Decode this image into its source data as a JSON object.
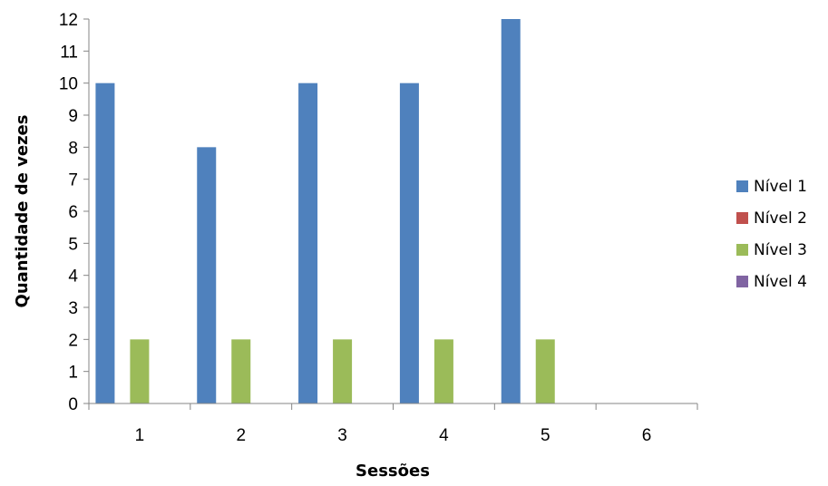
{
  "chart_data": {
    "type": "bar",
    "title": "",
    "xlabel": "Sessões",
    "ylabel": "Quantidade de vezes",
    "categories": [
      "1",
      "2",
      "3",
      "4",
      "5",
      "6"
    ],
    "ylim": [
      0,
      12
    ],
    "yticks": [
      0,
      1,
      2,
      3,
      4,
      5,
      6,
      7,
      8,
      9,
      10,
      11,
      12
    ],
    "grid": false,
    "legend_position": "right",
    "series": [
      {
        "name": "Nível 1",
        "color": "#4F81BD",
        "values": [
          10,
          8,
          10,
          10,
          12,
          0
        ]
      },
      {
        "name": "Nível 2",
        "color": "#C0504D",
        "values": [
          0,
          0,
          0,
          0,
          0,
          0
        ]
      },
      {
        "name": "Nível 3",
        "color": "#9BBB59",
        "values": [
          2,
          2,
          2,
          2,
          2,
          0
        ]
      },
      {
        "name": "Nível 4",
        "color": "#8064A2",
        "values": [
          0,
          0,
          0,
          0,
          0,
          0
        ]
      }
    ]
  }
}
